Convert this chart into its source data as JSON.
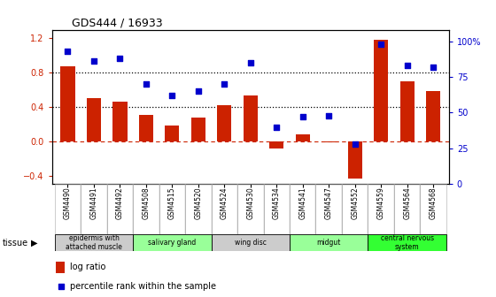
{
  "title": "GDS444 / 16933",
  "samples": [
    "GSM4490",
    "GSM4491",
    "GSM4492",
    "GSM4508",
    "GSM4515",
    "GSM4520",
    "GSM4524",
    "GSM4530",
    "GSM4534",
    "GSM4541",
    "GSM4547",
    "GSM4552",
    "GSM4559",
    "GSM4564",
    "GSM4568"
  ],
  "log_ratio": [
    0.87,
    0.5,
    0.46,
    0.31,
    0.18,
    0.28,
    0.42,
    0.53,
    -0.08,
    0.08,
    -0.01,
    -0.44,
    1.18,
    0.7,
    0.58
  ],
  "percentile": [
    93,
    86,
    88,
    70,
    62,
    65,
    70,
    85,
    40,
    47,
    48,
    28,
    98,
    83,
    82
  ],
  "bar_color": "#cc2200",
  "dot_color": "#0000cc",
  "ylim_left": [
    -0.5,
    1.3
  ],
  "ylim_right": [
    0,
    108.0
  ],
  "left_yticks": [
    -0.4,
    0.0,
    0.4,
    0.8,
    1.2
  ],
  "right_yticks": [
    0,
    25,
    50,
    75,
    100
  ],
  "right_yticklabels": [
    "0",
    "25",
    "50",
    "75",
    "100%"
  ],
  "tissue_groups": [
    {
      "label": "epidermis with\nattached muscle",
      "start": 0,
      "end": 3,
      "color": "#cccccc"
    },
    {
      "label": "salivary gland",
      "start": 3,
      "end": 6,
      "color": "#99ff99"
    },
    {
      "label": "wing disc",
      "start": 6,
      "end": 9,
      "color": "#cccccc"
    },
    {
      "label": "midgut",
      "start": 9,
      "end": 12,
      "color": "#99ff99"
    },
    {
      "label": "central nervous\nsystem",
      "start": 12,
      "end": 15,
      "color": "#33ff33"
    }
  ]
}
